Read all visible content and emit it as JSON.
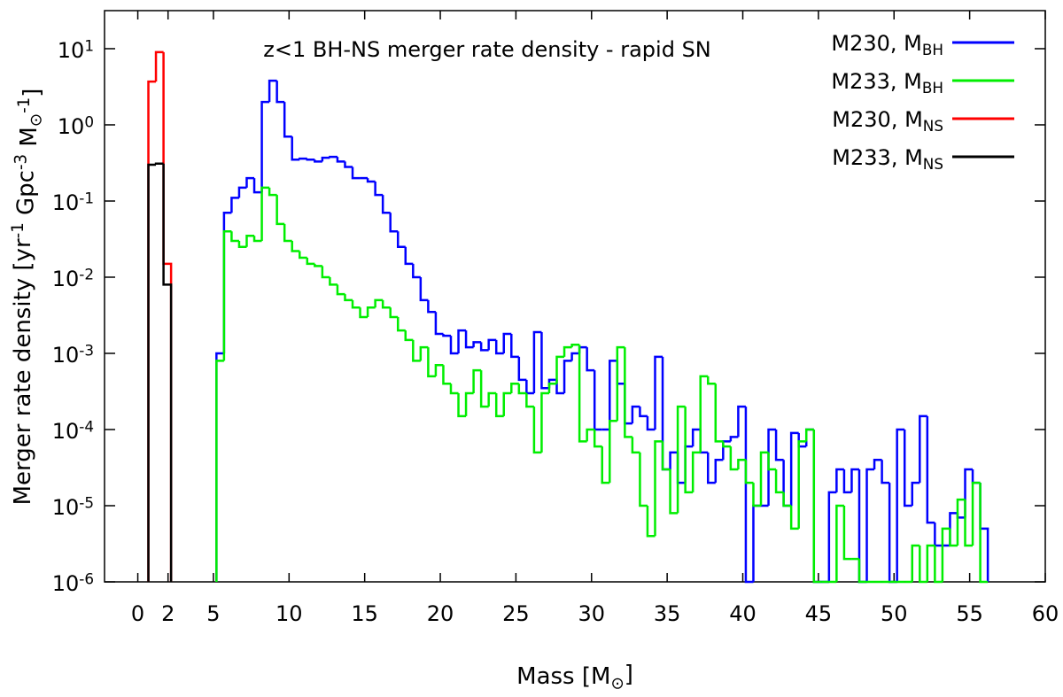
{
  "chart_data": {
    "type": "step_histogram",
    "title": "z<1 BH-NS merger rate density - rapid SN",
    "xlabel": "Mass [M_{⊙}]",
    "ylabel": "Merger rate density [yr^{-1} Gpc^{-3} M_{⊙}^{-1}]",
    "xlim": [
      -2.2,
      60
    ],
    "ylim": [
      1e-06,
      31.6
    ],
    "log_y": true,
    "xticks": [
      0,
      2,
      5,
      10,
      15,
      20,
      25,
      30,
      35,
      40,
      45,
      50,
      55,
      60
    ],
    "yticks": [
      {
        "value": 10,
        "label": "10^{1}"
      },
      {
        "value": 1,
        "label": "10^{0}"
      },
      {
        "value": 0.1,
        "label": "10^{-1}"
      },
      {
        "value": 0.01,
        "label": "10^{-2}"
      },
      {
        "value": 0.001,
        "label": "10^{-3}"
      },
      {
        "value": 0.0001,
        "label": "10^{-4}"
      },
      {
        "value": 1e-05,
        "label": "10^{-5}"
      },
      {
        "value": 1e-06,
        "label": "10^{-6}"
      }
    ],
    "legend": "top-right",
    "series": [
      {
        "name": "M230, M_{BH}",
        "color": "#0000ff",
        "bins": [
          5.2,
          5.7,
          6.2,
          6.7,
          7.2,
          7.7,
          8.2,
          8.7,
          9.2,
          9.7,
          10.2,
          10.7,
          11.2,
          11.7,
          12.2,
          12.7,
          13.2,
          13.7,
          14.2,
          14.7,
          15.2,
          15.7,
          16.2,
          16.7,
          17.2,
          17.7,
          18.2,
          18.7,
          19.2,
          19.7,
          20.2,
          20.7,
          21.2,
          21.7,
          22.2,
          22.7,
          23.2,
          23.7,
          24.2,
          24.7,
          25.2,
          25.7,
          26.2,
          26.7,
          27.2,
          27.7,
          28.2,
          28.7,
          29.2,
          29.7,
          30.2,
          30.7,
          31.2,
          31.7,
          32.2,
          32.7,
          33.2,
          33.7,
          34.2,
          34.7,
          35.2,
          35.7,
          36.2,
          36.7,
          37.2,
          37.7,
          38.2,
          38.7,
          39.2,
          39.7,
          40.2,
          40.7,
          41.2,
          41.7,
          42.2,
          42.7,
          43.2,
          43.7,
          44.2,
          44.7,
          45.2,
          45.7,
          46.2,
          46.7,
          47.2,
          47.7,
          48.2,
          48.7,
          49.2,
          49.7,
          50.2,
          50.7,
          51.2,
          51.7,
          52.2,
          52.7,
          53.2,
          53.7,
          54.2,
          54.7,
          55.2,
          55.7,
          56.2
        ],
        "values": [
          0.001,
          0.07,
          0.11,
          0.15,
          0.2,
          0.13,
          2.0,
          3.8,
          2.0,
          0.7,
          0.35,
          0.36,
          0.35,
          0.33,
          0.37,
          0.38,
          0.33,
          0.28,
          0.2,
          0.2,
          0.18,
          0.12,
          0.07,
          0.04,
          0.025,
          0.015,
          0.01,
          0.005,
          0.0035,
          0.0018,
          0.0017,
          0.001,
          0.002,
          0.0012,
          0.0014,
          0.0011,
          0.0015,
          0.001,
          0.0018,
          0.0009,
          0.00045,
          0.0003,
          0.0019,
          0.00035,
          0.00045,
          0.0003,
          0.0008,
          0.001,
          0.0012,
          0.0006,
          0.0001,
          0.0001,
          0.0008,
          0.0004,
          0.00012,
          0.0002,
          0.00015,
          0.0001,
          0.0009,
          3e-05,
          5e-05,
          2e-05,
          6e-05,
          0.0001,
          5e-05,
          2e-05,
          4e-05,
          7e-05,
          8e-05,
          0.0002,
          0,
          1e-05,
          1e-05,
          0.0001,
          4e-05,
          1e-05,
          9e-05,
          6e-05,
          0.0001,
          0,
          0,
          1.5e-05,
          3e-05,
          1.5e-05,
          3e-05,
          0,
          3e-05,
          4e-05,
          2e-05,
          0,
          0.0001,
          1e-05,
          2e-05,
          0.00015,
          6e-06,
          3e-06,
          3e-06,
          8e-06,
          7e-06,
          3e-05,
          2e-05,
          5e-06
        ]
      },
      {
        "name": "M233, M_{BH}",
        "color": "#00ee00",
        "bins": [
          5.2,
          5.7,
          6.2,
          6.7,
          7.2,
          7.7,
          8.2,
          8.7,
          9.2,
          9.7,
          10.2,
          10.7,
          11.2,
          11.7,
          12.2,
          12.7,
          13.2,
          13.7,
          14.2,
          14.7,
          15.2,
          15.7,
          16.2,
          16.7,
          17.2,
          17.7,
          18.2,
          18.7,
          19.2,
          19.7,
          20.2,
          20.7,
          21.2,
          21.7,
          22.2,
          22.7,
          23.2,
          23.7,
          24.2,
          24.7,
          25.2,
          25.7,
          26.2,
          26.7,
          27.2,
          27.7,
          28.2,
          28.7,
          29.2,
          29.7,
          30.2,
          30.7,
          31.2,
          31.7,
          32.2,
          32.7,
          33.2,
          33.7,
          34.2,
          34.7,
          35.2,
          35.7,
          36.2,
          36.7,
          37.2,
          37.7,
          38.2,
          38.7,
          39.2,
          39.7,
          40.2,
          40.7,
          41.2,
          41.7,
          42.2,
          42.7,
          43.2,
          43.7,
          44.2,
          44.7,
          45.2,
          45.7,
          46.2,
          46.7,
          47.2,
          47.7,
          48.2,
          48.7,
          49.2,
          49.7,
          50.2,
          50.7,
          51.2,
          51.7,
          52.2,
          52.7,
          53.2,
          53.7,
          54.2,
          54.7,
          55.2,
          55.7,
          56.2
        ],
        "values": [
          0.0008,
          0.04,
          0.03,
          0.025,
          0.035,
          0.03,
          0.15,
          0.12,
          0.05,
          0.03,
          0.022,
          0.018,
          0.015,
          0.014,
          0.01,
          0.008,
          0.006,
          0.005,
          0.004,
          0.003,
          0.004,
          0.005,
          0.004,
          0.003,
          0.002,
          0.0015,
          0.0008,
          0.0012,
          0.0005,
          0.0007,
          0.0004,
          0.0003,
          0.00015,
          0.0003,
          0.0006,
          0.0002,
          0.0003,
          0.00015,
          0.0003,
          0.0004,
          0.0003,
          0.0002,
          5e-05,
          0.0003,
          0.0004,
          0.0009,
          0.0012,
          0.0013,
          7e-05,
          0.0001,
          6e-05,
          2e-05,
          0.00013,
          0.0012,
          8e-05,
          5e-05,
          1e-05,
          4e-06,
          7e-05,
          3e-05,
          8e-06,
          0.0002,
          1.5e-05,
          5e-05,
          0.0005,
          0.0004,
          7e-05,
          6e-05,
          3e-05,
          4e-05,
          2e-05,
          1e-05,
          5e-05,
          3e-05,
          1.5e-05,
          1e-05,
          5e-06,
          7e-05,
          0.0001,
          0,
          0,
          0,
          1e-05,
          2e-06,
          2e-06,
          0,
          0,
          0,
          0,
          0,
          0,
          0,
          3e-06,
          0,
          3e-06,
          0,
          5e-06,
          3e-06,
          1.2e-05,
          3e-06,
          2e-05,
          0
        ]
      },
      {
        "name": "M230, M_{NS}",
        "color": "#ff0000",
        "bins": [
          0.7,
          1.2,
          1.7,
          2.2
        ],
        "values": [
          3.7,
          9,
          0.015
        ]
      },
      {
        "name": "M233, M_{NS}",
        "color": "#000000",
        "bins": [
          0.7,
          1.2,
          1.7,
          2.2
        ],
        "values": [
          0.3,
          0.31,
          0.008
        ]
      }
    ]
  }
}
